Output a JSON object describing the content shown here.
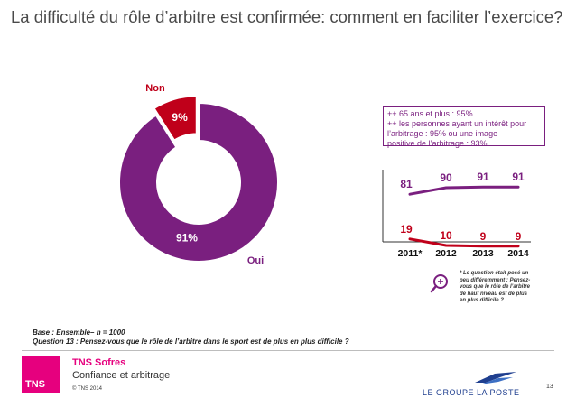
{
  "page": {
    "title": "La difficulté du rôle d’arbitre est confirmée: comment en faciliter l’exercice?"
  },
  "callout": {
    "lines": [
      "++ 65 ans et plus : 95%",
      "++ les personnes ayant un intérêt pour",
      "l’arbitrage : 95%  ou une image",
      "positive de l’arbitrage : 93%"
    ]
  },
  "chart_data": [
    {
      "type": "pie",
      "title": "",
      "slices": [
        {
          "label": "Oui",
          "value": 91,
          "value_label": "91%",
          "color": "#7a1f7f"
        },
        {
          "label": "Non",
          "value": 9,
          "value_label": "9%",
          "color": "#c0001a"
        }
      ]
    },
    {
      "type": "line",
      "title": "",
      "categories": [
        "2011*",
        "2012",
        "2013",
        "2014"
      ],
      "series": [
        {
          "values": [
            81,
            90,
            91,
            91
          ],
          "color": "#7a1f7f"
        },
        {
          "values": [
            19,
            10,
            9,
            9
          ],
          "color": "#c0001a"
        }
      ],
      "ylim": [
        0,
        100
      ],
      "grid": false
    }
  ],
  "footnote": {
    "lines": [
      "* Le question était posé un",
      "peu différemment : Pensez-",
      "vous que le rôle de l’arbitre",
      "de haut niveau est de plus",
      "en plus difficile ?"
    ]
  },
  "base_note": {
    "line1": "Base : Ensemble– n = 1000",
    "line2": "Question 13 : Pensez-vous que le rôle de l’arbitre dans le sport est de plus en plus difficile ?"
  },
  "footer": {
    "logo_text": "TNS",
    "brand": "TNS Sofres",
    "subtitle": "Confiance et arbitrage",
    "copyright": "© TNS 2014",
    "partner": "LE GROUPE LA POSTE",
    "page_number": "13"
  },
  "colors": {
    "oui": "#7a1f7f",
    "non": "#c0001a"
  }
}
